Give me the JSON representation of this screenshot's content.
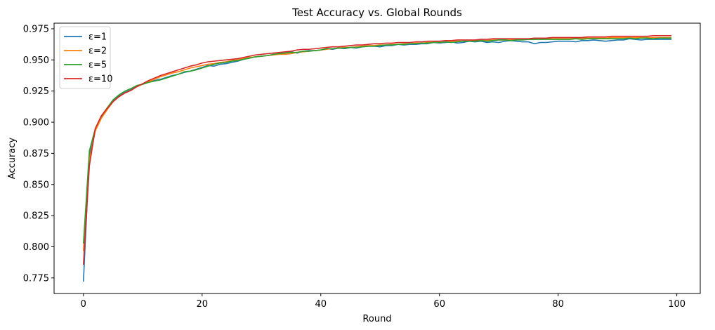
{
  "chart_data": {
    "type": "line",
    "title": "Test Accuracy vs. Global Rounds",
    "xlabel": "Round",
    "ylabel": "Accuracy",
    "xlim": [
      -4.95,
      103.95
    ],
    "ylim": [
      0.7625,
      0.9795
    ],
    "xticks": [
      0,
      20,
      40,
      60,
      80,
      100
    ],
    "yticks": [
      0.775,
      0.8,
      0.825,
      0.85,
      0.875,
      0.9,
      0.925,
      0.95,
      0.975
    ],
    "xtick_labels": [
      "0",
      "20",
      "40",
      "60",
      "80",
      "100"
    ],
    "ytick_labels": [
      "0.775",
      "0.800",
      "0.825",
      "0.850",
      "0.875",
      "0.900",
      "0.925",
      "0.950",
      "0.975"
    ],
    "grid": false,
    "legend_position": "top-left",
    "series": [
      {
        "name": "ε=1",
        "color": "#1f77b4",
        "values": [
          0.7725,
          0.874,
          0.894,
          0.904,
          0.911,
          0.917,
          0.921,
          0.924,
          0.926,
          0.929,
          0.9305,
          0.932,
          0.9335,
          0.9345,
          0.936,
          0.9375,
          0.9385,
          0.94,
          0.941,
          0.9425,
          0.944,
          0.9455,
          0.945,
          0.9465,
          0.947,
          0.948,
          0.949,
          0.9505,
          0.9515,
          0.9525,
          0.953,
          0.9535,
          0.954,
          0.955,
          0.9555,
          0.9565,
          0.9555,
          0.957,
          0.9575,
          0.9575,
          0.958,
          0.959,
          0.9585,
          0.9595,
          0.959,
          0.96,
          0.9595,
          0.9605,
          0.961,
          0.961,
          0.9605,
          0.9615,
          0.9615,
          0.9625,
          0.962,
          0.9625,
          0.9625,
          0.963,
          0.963,
          0.964,
          0.9635,
          0.964,
          0.9645,
          0.9635,
          0.964,
          0.965,
          0.9645,
          0.965,
          0.964,
          0.9645,
          0.964,
          0.965,
          0.9655,
          0.965,
          0.9645,
          0.9645,
          0.963,
          0.964,
          0.964,
          0.9645,
          0.965,
          0.965,
          0.965,
          0.9645,
          0.9655,
          0.9655,
          0.966,
          0.9655,
          0.965,
          0.9655,
          0.966,
          0.966,
          0.967,
          0.9665,
          0.966,
          0.9665,
          0.9665,
          0.9665,
          0.9665,
          0.9665
        ]
      },
      {
        "name": "ε=2",
        "color": "#ff7f0e",
        "values": [
          0.797,
          0.87,
          0.893,
          0.903,
          0.91,
          0.9165,
          0.9205,
          0.9235,
          0.9255,
          0.9285,
          0.9305,
          0.9325,
          0.9345,
          0.9365,
          0.938,
          0.9395,
          0.9405,
          0.942,
          0.9435,
          0.9445,
          0.9455,
          0.9465,
          0.947,
          0.948,
          0.9485,
          0.9495,
          0.95,
          0.951,
          0.952,
          0.9525,
          0.953,
          0.9535,
          0.954,
          0.9545,
          0.9545,
          0.955,
          0.956,
          0.9565,
          0.957,
          0.9575,
          0.958,
          0.9585,
          0.959,
          0.9595,
          0.96,
          0.96,
          0.9605,
          0.961,
          0.9615,
          0.9615,
          0.962,
          0.962,
          0.9625,
          0.9625,
          0.963,
          0.963,
          0.9635,
          0.9635,
          0.964,
          0.964,
          0.964,
          0.9645,
          0.9645,
          0.965,
          0.965,
          0.965,
          0.9655,
          0.9655,
          0.9655,
          0.966,
          0.966,
          0.966,
          0.966,
          0.9665,
          0.9665,
          0.9665,
          0.9665,
          0.9665,
          0.967,
          0.967,
          0.967,
          0.967,
          0.967,
          0.9675,
          0.9675,
          0.9675,
          0.9675,
          0.9675,
          0.9675,
          0.968,
          0.968,
          0.968,
          0.968,
          0.968,
          0.968,
          0.968,
          0.968,
          0.968,
          0.968,
          0.968
        ]
      },
      {
        "name": "ε=5",
        "color": "#2ca02c",
        "values": [
          0.803,
          0.877,
          0.895,
          0.905,
          0.9115,
          0.918,
          0.922,
          0.925,
          0.927,
          0.9295,
          0.9305,
          0.932,
          0.933,
          0.934,
          0.9355,
          0.937,
          0.9385,
          0.9405,
          0.941,
          0.942,
          0.9435,
          0.945,
          0.9465,
          0.9475,
          0.948,
          0.949,
          0.9495,
          0.9505,
          0.9515,
          0.9525,
          0.953,
          0.9535,
          0.9545,
          0.955,
          0.9555,
          0.956,
          0.956,
          0.957,
          0.957,
          0.9575,
          0.958,
          0.959,
          0.959,
          0.9595,
          0.9595,
          0.96,
          0.96,
          0.9605,
          0.961,
          0.961,
          0.9615,
          0.962,
          0.962,
          0.9625,
          0.9625,
          0.963,
          0.963,
          0.9635,
          0.9635,
          0.964,
          0.964,
          0.9645,
          0.964,
          0.9645,
          0.965,
          0.965,
          0.965,
          0.9655,
          0.965,
          0.9655,
          0.966,
          0.966,
          0.9655,
          0.966,
          0.966,
          0.9665,
          0.9665,
          0.9665,
          0.9665,
          0.9665,
          0.9665,
          0.9665,
          0.9665,
          0.967,
          0.9665,
          0.967,
          0.967,
          0.967,
          0.967,
          0.967,
          0.967,
          0.967,
          0.9675,
          0.967,
          0.9675,
          0.9675,
          0.967,
          0.9675,
          0.9675,
          0.9675
        ]
      },
      {
        "name": "ε=10",
        "color": "#d62728",
        "values": [
          0.786,
          0.865,
          0.895,
          0.905,
          0.911,
          0.9165,
          0.9205,
          0.9235,
          0.9255,
          0.9285,
          0.931,
          0.9335,
          0.9355,
          0.9375,
          0.939,
          0.9405,
          0.942,
          0.9435,
          0.945,
          0.946,
          0.9475,
          0.9485,
          0.949,
          0.9495,
          0.95,
          0.9505,
          0.951,
          0.952,
          0.953,
          0.954,
          0.9545,
          0.955,
          0.9555,
          0.956,
          0.9565,
          0.957,
          0.958,
          0.9585,
          0.9585,
          0.959,
          0.9595,
          0.96,
          0.9605,
          0.9605,
          0.961,
          0.9615,
          0.962,
          0.962,
          0.9625,
          0.963,
          0.963,
          0.9635,
          0.9635,
          0.964,
          0.964,
          0.964,
          0.9645,
          0.9645,
          0.965,
          0.965,
          0.965,
          0.9655,
          0.9655,
          0.966,
          0.966,
          0.966,
          0.966,
          0.9665,
          0.9665,
          0.967,
          0.967,
          0.967,
          0.967,
          0.967,
          0.967,
          0.967,
          0.9675,
          0.9675,
          0.9675,
          0.968,
          0.968,
          0.968,
          0.968,
          0.968,
          0.968,
          0.9685,
          0.9685,
          0.9685,
          0.9685,
          0.969,
          0.969,
          0.969,
          0.969,
          0.969,
          0.969,
          0.969,
          0.9695,
          0.9695,
          0.9695,
          0.9695
        ]
      }
    ]
  }
}
